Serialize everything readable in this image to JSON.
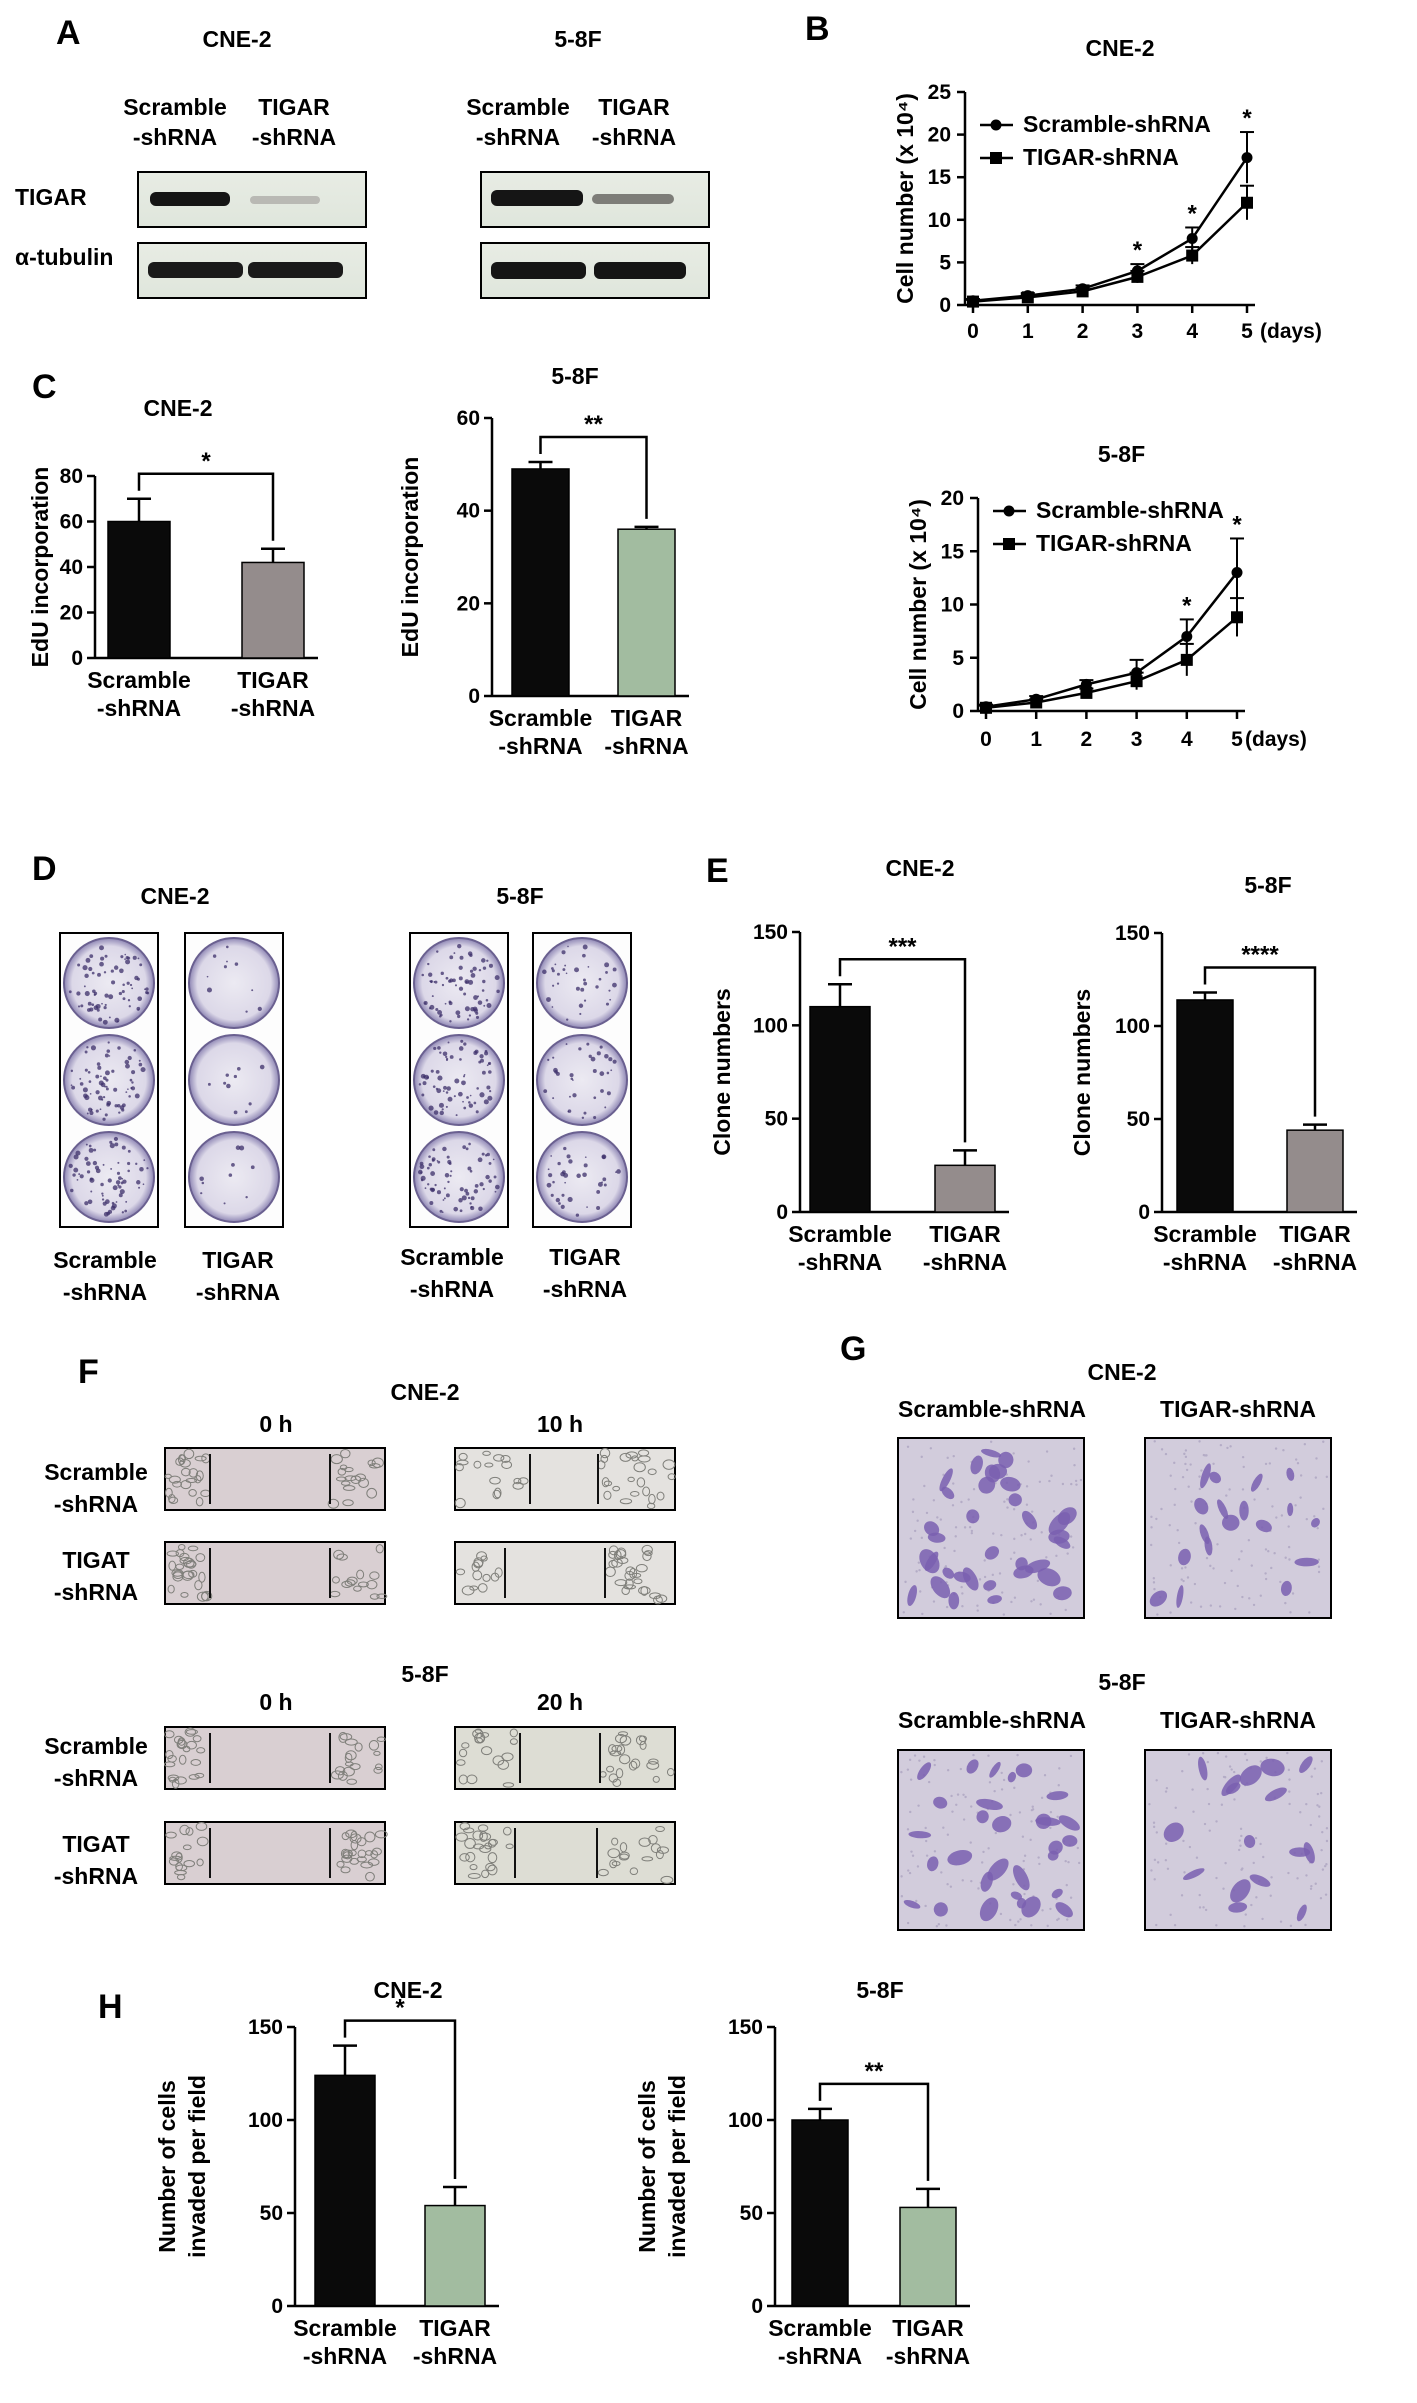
{
  "panels": {
    "A": {
      "letter": "A",
      "blots": [
        {
          "cell_line": "CNE-2",
          "lane1": "Scramble",
          "lane1b": "-shRNA",
          "lane2": "TIGAR",
          "lane2b": "-shRNA"
        },
        {
          "cell_line": "5-8F",
          "lane1": "Scramble",
          "lane1b": "-shRNA",
          "lane2": "TIGAR",
          "lane2b": "-shRNA"
        }
      ],
      "row_labels": [
        "TIGAR",
        "α-tubulin"
      ]
    },
    "D": {
      "letter": "D",
      "groups": [
        {
          "cell_line": "CNE-2",
          "left1": "Scramble",
          "left2": "-shRNA",
          "right1": "TIGAR",
          "right2": "-shRNA"
        },
        {
          "cell_line": "5-8F",
          "left1": "Scramble",
          "left2": "-shRNA",
          "right1": "TIGAR",
          "right2": "-shRNA"
        }
      ]
    },
    "F": {
      "letter": "F",
      "blocks": [
        {
          "cell_line": "CNE-2",
          "t0": "0 h",
          "t1": "10 h",
          "row1a": "Scramble",
          "row1b": "-shRNA",
          "row2a": "TIGAT",
          "row2b": "-shRNA"
        },
        {
          "cell_line": "5-8F",
          "t0": "0 h",
          "t1": "20 h",
          "row1a": "Scramble",
          "row1b": "-shRNA",
          "row2a": "TIGAT",
          "row2b": "-shRNA"
        }
      ]
    },
    "G": {
      "letter": "G",
      "blocks": [
        {
          "cell_line": "CNE-2",
          "left": "Scramble-shRNA",
          "right": "TIGAR-shRNA"
        },
        {
          "cell_line": "5-8F",
          "left": "Scramble-shRNA",
          "right": "TIGAR-shRNA"
        }
      ]
    },
    "letters": {
      "B": "B",
      "C": "C",
      "E": "E",
      "H": "H"
    }
  },
  "colors": {
    "black_bar": "#0a0a0a",
    "gray_bar": "#948c8c",
    "green_bar": "#a2bca0",
    "stain": "#7a5fb0",
    "scratch_bg": "#d9cfd2"
  },
  "chart_data": [
    {
      "id": "B-CNE2",
      "panel": "B",
      "type": "line",
      "title": "CNE-2",
      "xlabel": "",
      "x_suffix": "(days)",
      "ylabel": "Cell number (x 10⁴)",
      "x": [
        0,
        1,
        2,
        3,
        4,
        5
      ],
      "ylim": [
        0,
        25
      ],
      "yticks": [
        0,
        5,
        10,
        15,
        20,
        25
      ],
      "series": [
        {
          "name": "Scramble-shRNA",
          "marker": "circle",
          "values": [
            0.5,
            1.1,
            1.9,
            4.0,
            7.8,
            17.3
          ],
          "errors": [
            0.2,
            0.3,
            0.4,
            0.8,
            1.3,
            3.0
          ]
        },
        {
          "name": "TIGAR-shRNA",
          "marker": "square",
          "values": [
            0.4,
            0.9,
            1.6,
            3.3,
            5.8,
            12.0
          ],
          "errors": [
            0.2,
            0.3,
            0.4,
            0.7,
            1.0,
            2.0
          ]
        }
      ],
      "significance": [
        {
          "x": 3,
          "label": "*"
        },
        {
          "x": 4,
          "label": "*"
        },
        {
          "x": 5,
          "label": "*"
        }
      ],
      "legend": "top-left"
    },
    {
      "id": "B-58F",
      "panel": "B",
      "type": "line",
      "title": "5-8F",
      "xlabel": "",
      "x_suffix": "(days)",
      "ylabel": "Cell number (x 10⁴)",
      "x": [
        0,
        1,
        2,
        3,
        4,
        5
      ],
      "ylim": [
        0,
        20
      ],
      "yticks": [
        0,
        5,
        10,
        15,
        20
      ],
      "series": [
        {
          "name": "Scramble-shRNA",
          "marker": "circle",
          "values": [
            0.4,
            1.1,
            2.5,
            3.6,
            7.0,
            13.0
          ],
          "errors": [
            0.2,
            0.3,
            0.4,
            1.2,
            1.6,
            3.2
          ]
        },
        {
          "name": "TIGAR-shRNA",
          "marker": "square",
          "values": [
            0.3,
            0.8,
            1.7,
            2.8,
            4.8,
            8.8
          ],
          "errors": [
            0.2,
            0.3,
            0.4,
            0.8,
            1.5,
            1.8
          ]
        }
      ],
      "significance": [
        {
          "x": 4,
          "label": "*"
        },
        {
          "x": 5,
          "label": "*"
        }
      ],
      "legend": "top-left"
    },
    {
      "id": "C-CNE2",
      "panel": "C",
      "type": "bar",
      "title": "CNE-2",
      "ylabel": "EdU incorporation",
      "categories": [
        "Scramble",
        "TIGAR"
      ],
      "categories_line2": [
        "-shRNA",
        "-shRNA"
      ],
      "values": [
        60,
        42
      ],
      "errors": [
        10,
        6
      ],
      "bar_colors": [
        "#0a0a0a",
        "#948c8c"
      ],
      "ylim": [
        0,
        80
      ],
      "yticks": [
        0,
        20,
        40,
        60,
        80
      ],
      "significance": "*"
    },
    {
      "id": "C-58F",
      "panel": "C",
      "type": "bar",
      "title": "5-8F",
      "ylabel": "EdU incorporation",
      "categories": [
        "Scramble",
        "TIGAR"
      ],
      "categories_line2": [
        "-shRNA",
        "-shRNA"
      ],
      "values": [
        49,
        36
      ],
      "errors": [
        1.5,
        0.5
      ],
      "bar_colors": [
        "#0a0a0a",
        "#a2bca0"
      ],
      "ylim": [
        0,
        60
      ],
      "yticks": [
        0,
        20,
        40,
        60
      ],
      "significance": "**"
    },
    {
      "id": "E-CNE2",
      "panel": "E",
      "type": "bar",
      "title": "CNE-2",
      "ylabel": "Clone numbers",
      "categories": [
        "Scramble",
        "TIGAR"
      ],
      "categories_line2": [
        "-shRNA",
        "-shRNA"
      ],
      "values": [
        110,
        25
      ],
      "errors": [
        12,
        8
      ],
      "bar_colors": [
        "#0a0a0a",
        "#948c8c"
      ],
      "ylim": [
        0,
        150
      ],
      "yticks": [
        0,
        50,
        100,
        150
      ],
      "significance": "***"
    },
    {
      "id": "E-58F",
      "panel": "E",
      "type": "bar",
      "title": "5-8F",
      "ylabel": "Clone numbers",
      "categories": [
        "Scramble",
        "TIGAR"
      ],
      "categories_line2": [
        "-shRNA",
        "-shRNA"
      ],
      "values": [
        114,
        44
      ],
      "errors": [
        4,
        3
      ],
      "bar_colors": [
        "#0a0a0a",
        "#948c8c"
      ],
      "ylim": [
        0,
        150
      ],
      "yticks": [
        0,
        50,
        100,
        150
      ],
      "significance": "****"
    },
    {
      "id": "H-CNE2",
      "panel": "H",
      "type": "bar",
      "title": "CNE-2",
      "ylabel": "Number of cells",
      "ylabel2": "invaded per field",
      "categories": [
        "Scramble",
        "TIGAR"
      ],
      "categories_line2": [
        "-shRNA",
        "-shRNA"
      ],
      "values": [
        124,
        54
      ],
      "errors": [
        16,
        10
      ],
      "bar_colors": [
        "#0a0a0a",
        "#a2bca0"
      ],
      "ylim": [
        0,
        150
      ],
      "yticks": [
        0,
        50,
        100,
        150
      ],
      "significance": "*"
    },
    {
      "id": "H-58F",
      "panel": "H",
      "type": "bar",
      "title": "5-8F",
      "ylabel": "Number of cells",
      "ylabel2": "invaded per field",
      "categories": [
        "Scramble",
        "TIGAR"
      ],
      "categories_line2": [
        "-shRNA",
        "-shRNA"
      ],
      "values": [
        100,
        53
      ],
      "errors": [
        6,
        10
      ],
      "bar_colors": [
        "#0a0a0a",
        "#a2bca0"
      ],
      "ylim": [
        0,
        150
      ],
      "yticks": [
        0,
        50,
        100,
        150
      ],
      "significance": "**"
    }
  ]
}
